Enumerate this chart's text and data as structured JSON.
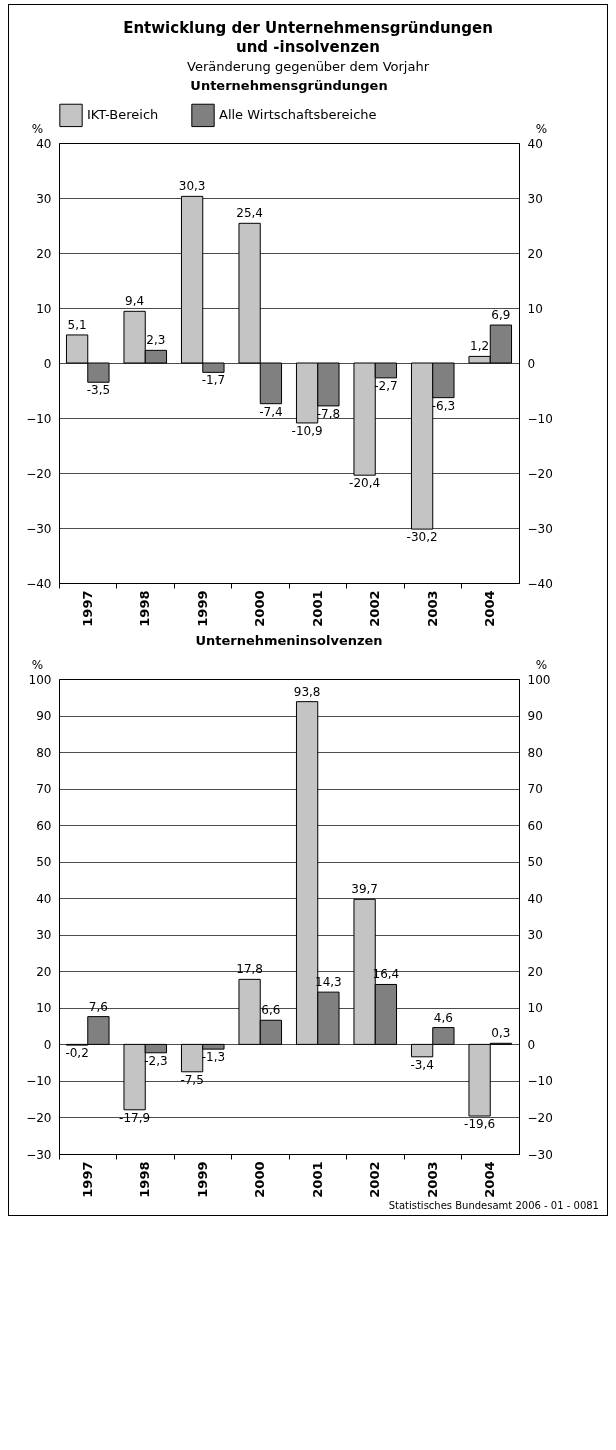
{
  "chart_data": [
    {
      "type": "other",
      "title": "Entwicklung der Unternehmensgründungen und -insolvenzen",
      "subtitle": "Veränderung gegenüber dem Vorjahr"
    },
    {
      "type": "bar",
      "title": "Unternehmensgründungen",
      "ylabel": "%",
      "y2label": "%",
      "categories": [
        "1997",
        "1998",
        "1999",
        "2000",
        "2001",
        "2002",
        "2003",
        "2004"
      ],
      "series": [
        {
          "name": "IKT-Bereich",
          "color": "#c4c4c4",
          "values": [
            5.1,
            9.4,
            30.3,
            25.4,
            -10.9,
            -20.4,
            -30.2,
            1.2
          ],
          "value_labels": [
            "5,1",
            "9,4",
            "30,3",
            "25,4",
            "-10,9",
            "-20,4",
            "-30,2",
            "1,2"
          ]
        },
        {
          "name": "Alle Wirtschaftsbereiche",
          "color": "#808080",
          "values": [
            -3.5,
            2.3,
            -1.7,
            -7.4,
            -7.8,
            -2.7,
            -6.3,
            6.9
          ],
          "value_labels": [
            "-3,5",
            "2,3",
            "-1,7",
            "-7,4",
            "-7,8",
            "-2,7",
            "-6,3",
            "6,9"
          ]
        }
      ],
      "ylim": [
        -40,
        40
      ],
      "yticks": [
        -40,
        -30,
        -20,
        -10,
        0,
        10,
        20,
        30,
        40
      ],
      "y2lim": [
        -40,
        40
      ],
      "y2ticks": [
        -40,
        -30,
        -20,
        -10,
        0,
        10,
        20,
        30,
        40
      ],
      "grid": "y",
      "legend": "top"
    },
    {
      "type": "bar",
      "title": "Unternehmeninsolvenzen",
      "ylabel": "%",
      "y2label": "%",
      "categories": [
        "1997",
        "1998",
        "1999",
        "2000",
        "2001",
        "2002",
        "2003",
        "2004"
      ],
      "series": [
        {
          "color": "#c4c4c4",
          "values": [
            -0.2,
            -17.9,
            -7.5,
            17.8,
            93.8,
            39.7,
            -3.4,
            -19.6
          ],
          "value_labels": [
            "-0,2",
            "-17,9",
            "-7,5",
            "17,8",
            "93,8",
            "39,7",
            "-3,4",
            "-19,6"
          ]
        },
        {
          "color": "#808080",
          "values": [
            7.6,
            -2.3,
            -1.3,
            6.6,
            14.3,
            16.4,
            4.6,
            0.3
          ],
          "value_labels": [
            "7,6",
            "-2,3",
            "-1,3",
            "6,6",
            "14,3",
            "16,4",
            "4,6",
            "0,3"
          ]
        }
      ],
      "ylim": [
        -30,
        100
      ],
      "yticks": [
        -30,
        -20,
        -10,
        0,
        10,
        20,
        30,
        40,
        50,
        60,
        70,
        80,
        90,
        100
      ],
      "y2lim": [
        -30,
        100
      ],
      "y2ticks": [
        -30,
        -20,
        -10,
        0,
        10,
        20,
        30,
        40,
        50,
        60,
        70,
        80,
        90,
        100
      ],
      "grid": "y",
      "annotations": [
        "Statistisches Bundesamt 2006 - 01 - 0081"
      ]
    }
  ]
}
